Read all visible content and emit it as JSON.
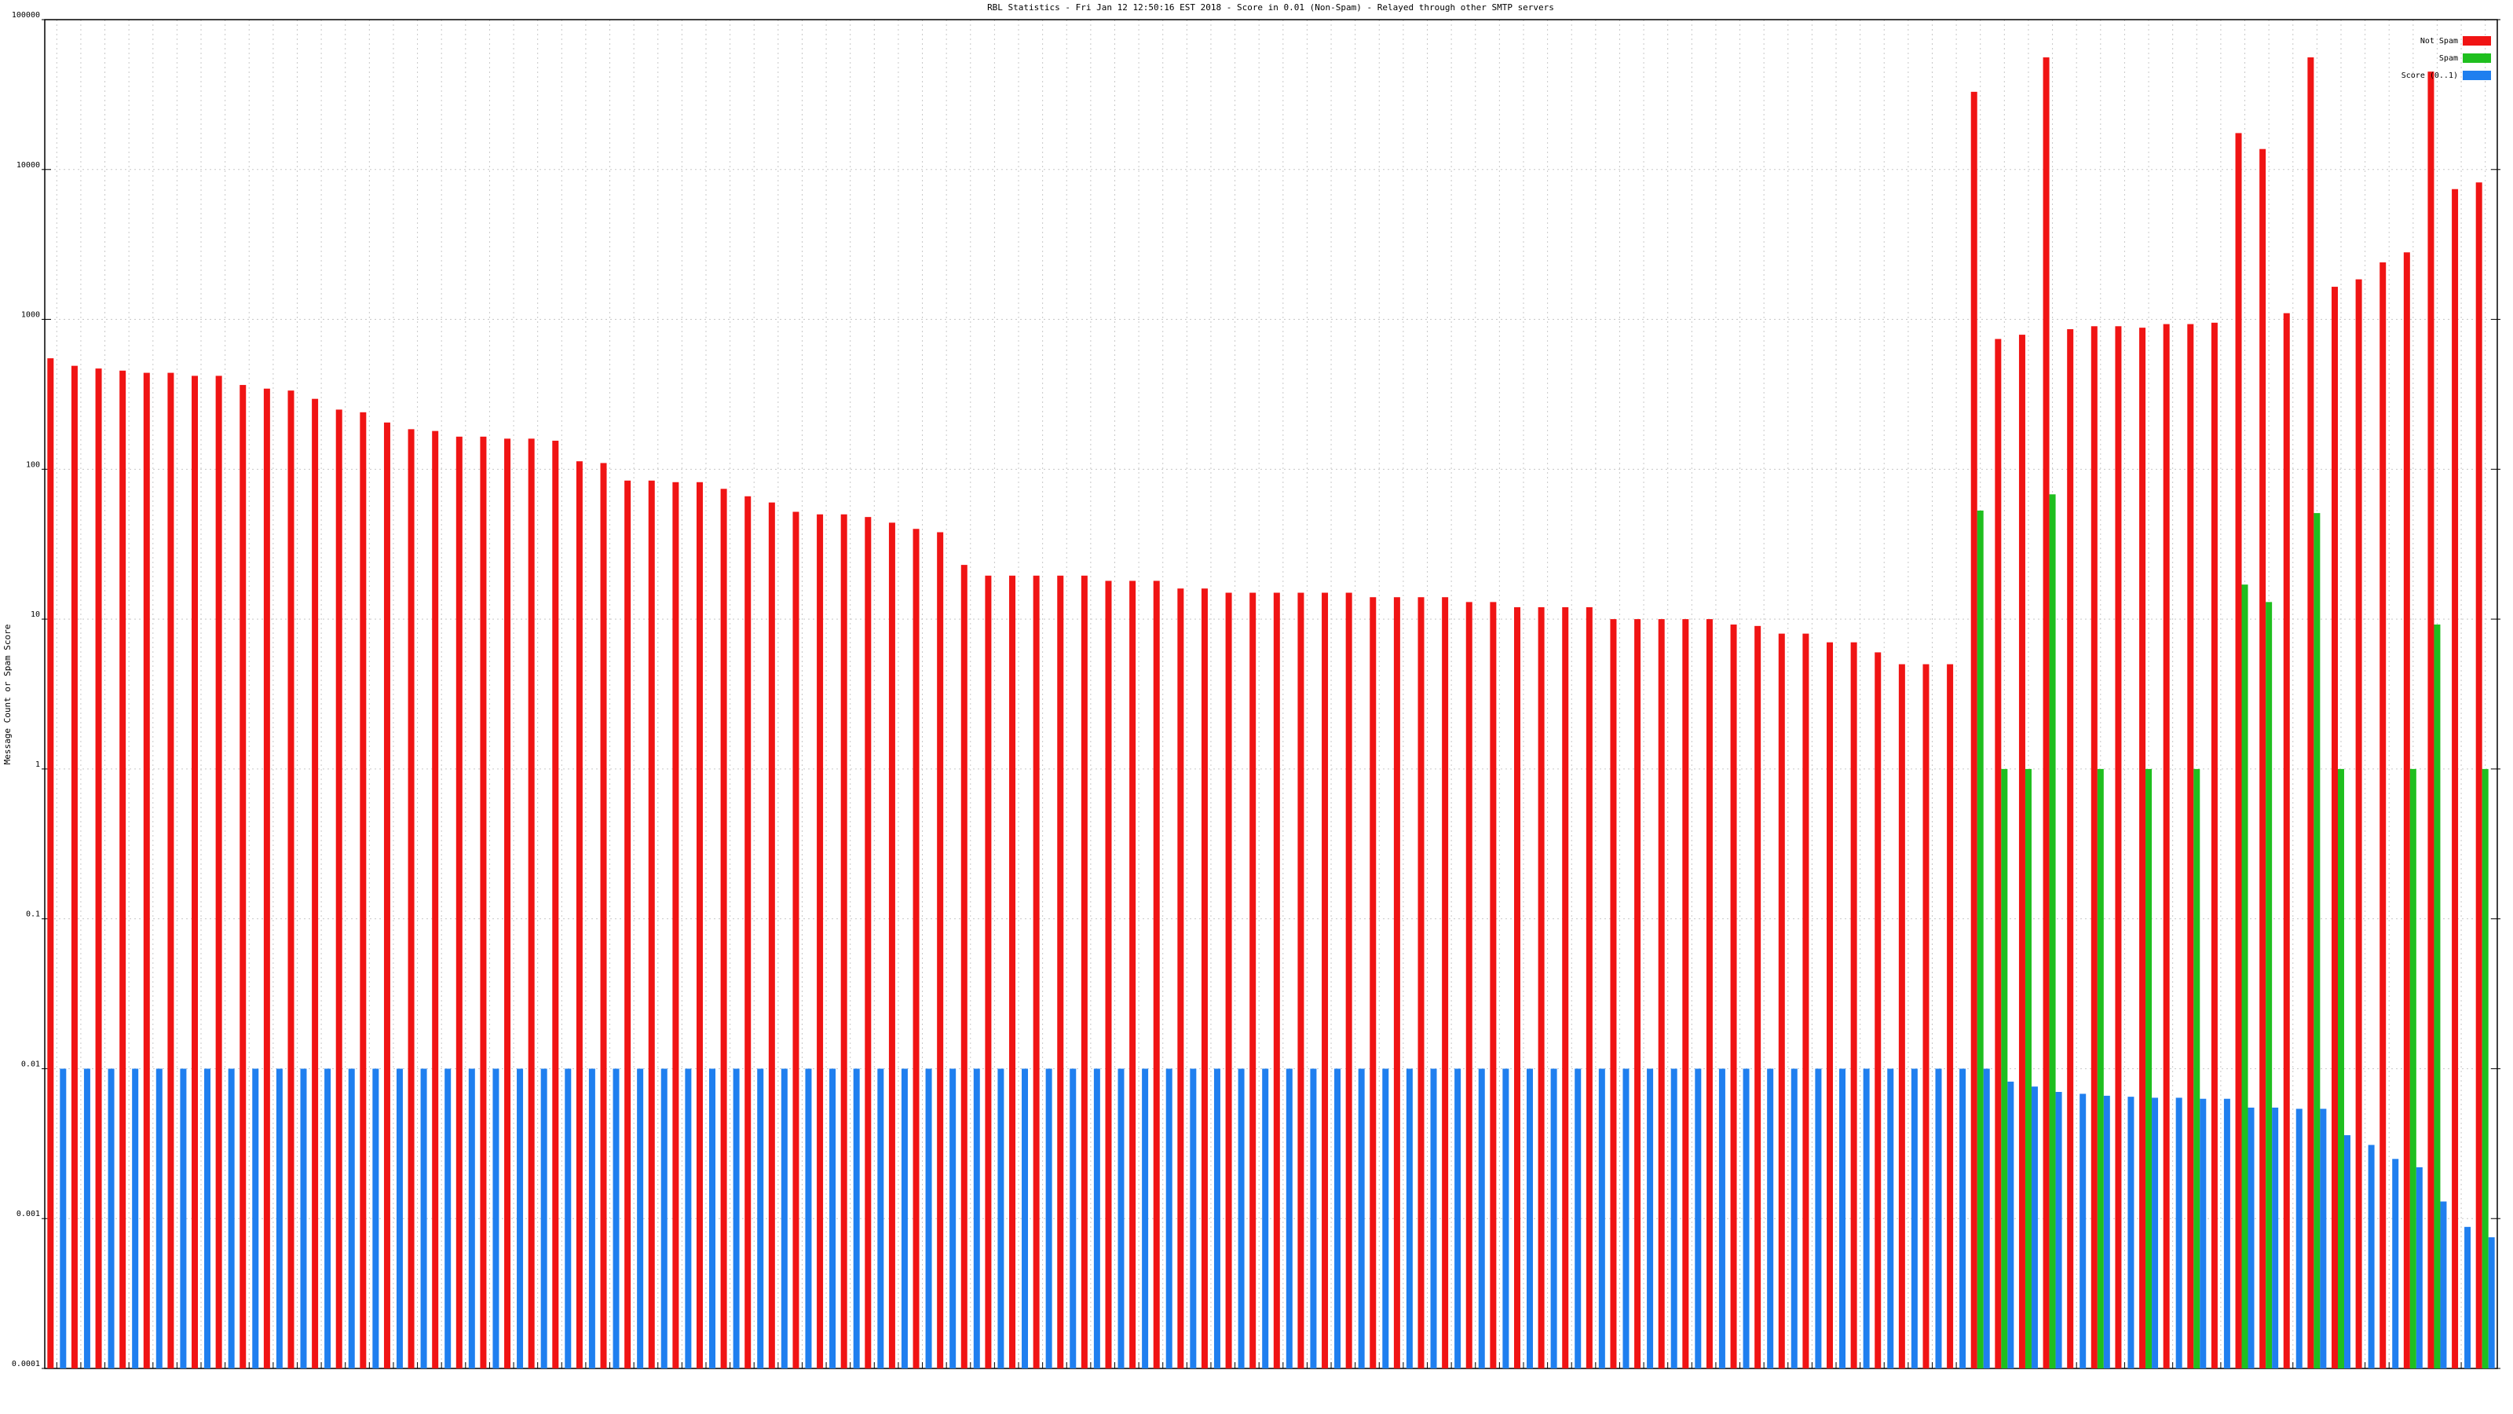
{
  "chart_data": {
    "type": "bar",
    "title": "RBL Statistics - Fri Jan 12 12:50:16 EST 2018 - Score in 0.01 (Non-Spam) - Relayed through other SMTP servers",
    "y_label": "Message Count or Spam Score",
    "log_scale": true,
    "grid": true,
    "legend": "top-right",
    "ylim": [
      0.0001,
      100000
    ],
    "yticks": [
      0.0001,
      0.001,
      0.01,
      0.1,
      1,
      10,
      100,
      1000,
      10000,
      100000
    ],
    "categories": [
      null,
      null,
      null,
      null,
      null,
      null,
      null,
      null,
      null,
      null,
      null,
      null,
      null,
      null,
      null,
      null,
      null,
      null,
      null,
      null,
      null,
      null,
      null,
      null,
      null,
      null,
      null,
      null,
      null,
      null,
      null,
      null,
      null,
      null,
      null,
      null,
      null,
      null,
      null,
      null,
      null,
      null,
      null,
      null,
      null,
      null,
      null,
      null,
      null,
      null,
      null,
      null,
      null,
      null,
      null,
      null,
      null,
      null,
      null,
      null,
      null,
      null,
      null,
      null,
      null,
      null,
      null,
      null,
      null,
      null,
      null,
      null,
      null,
      null,
      null,
      null,
      null,
      null,
      null,
      null,
      null,
      null,
      null,
      null,
      null,
      null,
      null,
      null,
      null,
      null,
      null,
      null,
      null,
      null,
      null,
      null,
      null,
      null,
      null,
      null,
      null,
      null
    ],
    "series": [
      {
        "name": "Not Spam",
        "color": "#f01414",
        "values": [
          550,
          490,
          470,
          455,
          440,
          440,
          420,
          420,
          365,
          345,
          335,
          295,
          250,
          240,
          205,
          185,
          180,
          165,
          165,
          160,
          160,
          155,
          113,
          110,
          84,
          84,
          82,
          82,
          74,
          66,
          60,
          52,
          50,
          50,
          48,
          44,
          40,
          38,
          23,
          19.5,
          19.5,
          19.5,
          19.5,
          19.5,
          18,
          18,
          18,
          16,
          16,
          15,
          15,
          15,
          15,
          15,
          15,
          14,
          14,
          14,
          14,
          13,
          13,
          12,
          12,
          12,
          12,
          10,
          10,
          10,
          10,
          10,
          9.2,
          9,
          8,
          8,
          7,
          7,
          6,
          5,
          5,
          5,
          33000,
          740,
          790,
          56000,
          860,
          900,
          900,
          880,
          930,
          930,
          950,
          17500,
          13700,
          1100,
          56000,
          1650,
          1850,
          2400,
          2800,
          45000,
          7400,
          8200
        ]
      },
      {
        "name": "Spam",
        "color": "#1fbf1f",
        "values": [
          null,
          null,
          null,
          null,
          null,
          null,
          null,
          null,
          null,
          null,
          null,
          null,
          null,
          null,
          null,
          null,
          null,
          null,
          null,
          null,
          null,
          null,
          null,
          null,
          null,
          null,
          null,
          null,
          null,
          null,
          null,
          null,
          null,
          null,
          null,
          null,
          null,
          null,
          null,
          null,
          null,
          null,
          null,
          null,
          null,
          null,
          null,
          null,
          null,
          null,
          null,
          null,
          null,
          null,
          null,
          null,
          null,
          null,
          null,
          null,
          null,
          null,
          null,
          null,
          null,
          null,
          null,
          null,
          null,
          null,
          null,
          null,
          null,
          null,
          null,
          null,
          null,
          null,
          null,
          null,
          53,
          1,
          1,
          68,
          null,
          1,
          null,
          1,
          null,
          1,
          null,
          17,
          13,
          null,
          51,
          1,
          null,
          null,
          1,
          9.2,
          null,
          1
        ]
      },
      {
        "name": "Score (0..1)",
        "color": "#1f7fef",
        "values": [
          0.01,
          0.01,
          0.01,
          0.01,
          0.01,
          0.01,
          0.01,
          0.01,
          0.01,
          0.01,
          0.01,
          0.01,
          0.01,
          0.01,
          0.01,
          0.01,
          0.01,
          0.01,
          0.01,
          0.01,
          0.01,
          0.01,
          0.01,
          0.01,
          0.01,
          0.01,
          0.01,
          0.01,
          0.01,
          0.01,
          0.01,
          0.01,
          0.01,
          0.01,
          0.01,
          0.01,
          0.01,
          0.01,
          0.01,
          0.01,
          0.01,
          0.01,
          0.01,
          0.01,
          0.01,
          0.01,
          0.01,
          0.01,
          0.01,
          0.01,
          0.01,
          0.01,
          0.01,
          0.01,
          0.01,
          0.01,
          0.01,
          0.01,
          0.01,
          0.01,
          0.01,
          0.01,
          0.01,
          0.01,
          0.01,
          0.01,
          0.01,
          0.01,
          0.01,
          0.01,
          0.01,
          0.01,
          0.01,
          0.01,
          0.01,
          0.01,
          0.01,
          0.01,
          0.01,
          0.01,
          0.01,
          0.0082,
          0.0076,
          0.007,
          0.0068,
          0.0066,
          0.0065,
          0.0064,
          0.0064,
          0.0063,
          0.0063,
          0.0055,
          0.0055,
          0.0054,
          0.0054,
          0.0036,
          0.0031,
          0.0025,
          0.0022,
          0.0013,
          0.00088,
          0.00075
        ]
      }
    ]
  }
}
